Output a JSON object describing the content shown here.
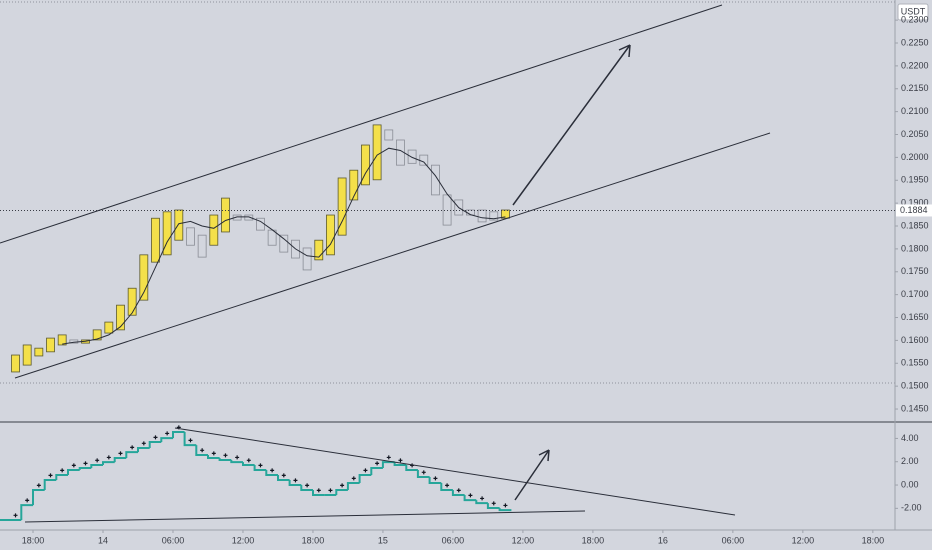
{
  "chart_data": [
    {
      "type": "candlestick",
      "currency": "USDT",
      "x": [
        -1.5,
        -0.5,
        0.5,
        1.5,
        2.5,
        3.5,
        4.5,
        5.5,
        6.5,
        7.5,
        8.5,
        9.5,
        10.5,
        11.5,
        12.5,
        13.5,
        14.5,
        15.5,
        16.5,
        17.5,
        18.5,
        19.5,
        20.5,
        21.5,
        22.5,
        23.5,
        24.5,
        25.5,
        26.5,
        27.5,
        28.5,
        29.5,
        30.5,
        31.5,
        32.5,
        33.5,
        34.5,
        35.5,
        36.5,
        37.5,
        38.5,
        39.5,
        40.5
      ],
      "open": [
        0.1531,
        0.1546,
        0.1566,
        0.1575,
        0.159,
        0.1601,
        0.1594,
        0.1601,
        0.1616,
        0.1623,
        0.1655,
        0.1688,
        0.1771,
        0.1787,
        0.1819,
        0.1846,
        0.183,
        0.1808,
        0.1837,
        0.1874,
        0.1874,
        0.1867,
        0.1841,
        0.183,
        0.1819,
        0.1802,
        0.1776,
        0.1787,
        0.183,
        0.1907,
        0.194,
        0.1951,
        0.206,
        0.2038,
        0.2016,
        0.2005,
        0.1983,
        0.1918,
        0.1907,
        0.1885,
        0.1885,
        0.1881,
        0.1867
      ],
      "close": [
        0.1568,
        0.159,
        0.1583,
        0.1605,
        0.1612,
        0.1594,
        0.1601,
        0.1623,
        0.164,
        0.1677,
        0.1714,
        0.1787,
        0.1867,
        0.1881,
        0.1885,
        0.1808,
        0.1782,
        0.1874,
        0.1911,
        0.1863,
        0.1863,
        0.1841,
        0.1808,
        0.1793,
        0.178,
        0.1754,
        0.1819,
        0.1874,
        0.1955,
        0.1972,
        0.2027,
        0.2071,
        0.2038,
        0.1983,
        0.1987,
        0.1983,
        0.1918,
        0.1852,
        0.1874,
        0.1874,
        0.1859,
        0.1863,
        0.1885
      ],
      "moving_average": [
        null,
        null,
        null,
        null,
        0.1592,
        0.1596,
        0.1598,
        0.1603,
        0.1612,
        0.163,
        0.166,
        0.1705,
        0.176,
        0.1815,
        0.1855,
        0.186,
        0.185,
        0.1845,
        0.1862,
        0.187,
        0.187,
        0.186,
        0.1842,
        0.1822,
        0.18,
        0.1785,
        0.1782,
        0.181,
        0.186,
        0.1915,
        0.1965,
        0.2005,
        0.202,
        0.2015,
        0.2,
        0.199,
        0.196,
        0.192,
        0.189,
        0.1875,
        0.1868,
        0.1866,
        0.187
      ],
      "up_color": "#f4e04a",
      "down_color": "#8a8d96",
      "ma_color": "#2a2e39",
      "last_price": 0.1884,
      "xlim": [
        -2.83,
        73.9
      ],
      "xticks": [
        {
          "value": 0,
          "label": "18:00"
        },
        {
          "value": 6,
          "label": "14"
        },
        {
          "value": 12,
          "label": "06:00"
        },
        {
          "value": 18,
          "label": "12:00"
        },
        {
          "value": 24,
          "label": "18:00"
        },
        {
          "value": 30,
          "label": "15"
        },
        {
          "value": 36,
          "label": "06:00"
        },
        {
          "value": 42,
          "label": "12:00"
        },
        {
          "value": 48,
          "label": "18:00"
        },
        {
          "value": 54,
          "label": "16"
        },
        {
          "value": 60,
          "label": "06:00"
        },
        {
          "value": 66,
          "label": "12:00"
        },
        {
          "value": 72,
          "label": "18:00"
        }
      ],
      "ylim": [
        0.1426,
        0.2344
      ],
      "yticks": [
        {
          "value": 0.145,
          "label": "0.1450"
        },
        {
          "value": 0.15,
          "label": "0.1500"
        },
        {
          "value": 0.155,
          "label": "0.1550"
        },
        {
          "value": 0.16,
          "label": "0.1600"
        },
        {
          "value": 0.165,
          "label": "0.1650"
        },
        {
          "value": 0.17,
          "label": "0.1700"
        },
        {
          "value": 0.175,
          "label": "0.1750"
        },
        {
          "value": 0.18,
          "label": "0.1800"
        },
        {
          "value": 0.185,
          "label": "0.1850"
        },
        {
          "value": 0.19,
          "label": "0.1900"
        },
        {
          "value": 0.195,
          "label": "0.1950"
        },
        {
          "value": 0.2,
          "label": "0.2000"
        },
        {
          "value": 0.205,
          "label": "0.2050"
        },
        {
          "value": 0.21,
          "label": "0.2100"
        },
        {
          "value": 0.215,
          "label": "0.2150"
        },
        {
          "value": 0.22,
          "label": "0.2200"
        },
        {
          "value": 0.225,
          "label": "0.2250"
        },
        {
          "value": 0.23,
          "label": "0.2300"
        }
      ]
    },
    {
      "type": "step",
      "line_values": [
        -3.0,
        -1.72,
        -0.43,
        0.43,
        0.86,
        1.29,
        1.46,
        1.72,
        1.97,
        2.32,
        2.83,
        3.18,
        3.69,
        4.03,
        4.55,
        3.43,
        2.58,
        2.32,
        2.15,
        1.97,
        1.72,
        1.29,
        0.86,
        0.43,
        0,
        -0.43,
        -0.86,
        -0.86,
        -0.43,
        0.17,
        0.86,
        1.46,
        1.97,
        1.72,
        1.29,
        0.69,
        0.17,
        -0.43,
        -0.86,
        -1.29,
        -1.55,
        -1.97,
        -2.15
      ],
      "dot_values": [
        -2.6,
        -1.32,
        -0.03,
        0.83,
        1.26,
        1.69,
        1.86,
        2.12,
        2.37,
        2.72,
        3.23,
        3.58,
        4.09,
        4.43,
        4.95,
        3.83,
        2.98,
        2.72,
        2.55,
        2.37,
        2.12,
        1.69,
        1.26,
        0.83,
        0.4,
        -0.03,
        -0.46,
        -0.46,
        -0.03,
        0.57,
        1.26,
        1.86,
        2.37,
        2.12,
        1.69,
        1.09,
        0.57,
        -0.03,
        -0.46,
        -0.89,
        -1.15,
        -1.57,
        -1.75
      ],
      "line_color": "#26a69a",
      "dot_color": "#131722",
      "ylim": [
        -3.86,
        5.41
      ],
      "yticks": [
        {
          "value": -2,
          "label": "-2.00"
        },
        {
          "value": 0,
          "label": "0.00"
        },
        {
          "value": 2,
          "label": "2.00"
        },
        {
          "value": 4,
          "label": "4.00"
        }
      ]
    }
  ]
}
